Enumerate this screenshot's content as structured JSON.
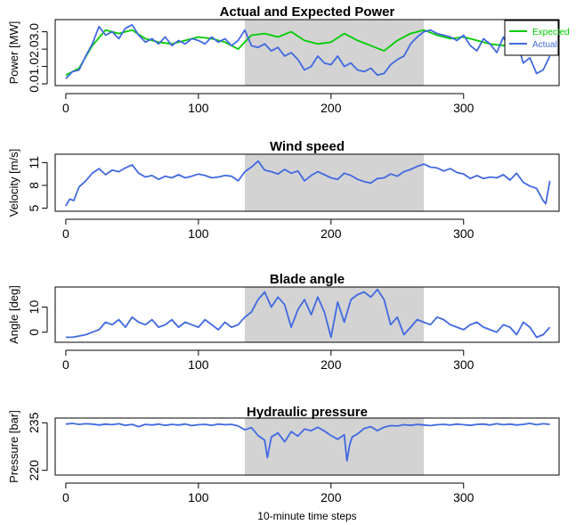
{
  "figure": {
    "xlabel": "10-minute time steps"
  },
  "chart_data": [
    {
      "type": "line",
      "title": "Actual and Expected Power",
      "xlabel": "",
      "ylabel": "Power [MW]",
      "xlim": [
        -8,
        372
      ],
      "ylim": [
        -0.1,
        3.7
      ],
      "xticks": [
        0,
        100,
        200,
        300
      ],
      "yticks": [
        0.0,
        1.0,
        2.0,
        3.0
      ],
      "ytick_labels": [
        "0.0",
        "1.0",
        "2.0",
        "3.0"
      ],
      "shaded_region": [
        135,
        270
      ],
      "shade_color": "#d3d3d3",
      "legend": {
        "position": "top-right",
        "entries": [
          "Expected",
          "Actual"
        ]
      },
      "series": [
        {
          "name": "Expected",
          "color": "#00cc00",
          "x": [
            0,
            10,
            20,
            30,
            40,
            50,
            60,
            70,
            80,
            90,
            100,
            110,
            120,
            130,
            140,
            150,
            160,
            170,
            180,
            190,
            200,
            210,
            220,
            230,
            240,
            250,
            260,
            270,
            280,
            290,
            300,
            310,
            320,
            330,
            340,
            350,
            360,
            365
          ],
          "y": [
            0.5,
            0.9,
            2.2,
            3.1,
            2.9,
            3.1,
            2.6,
            2.4,
            2.3,
            2.5,
            2.7,
            2.6,
            2.4,
            2.0,
            2.8,
            2.9,
            2.7,
            3.0,
            2.5,
            2.3,
            2.4,
            2.9,
            2.5,
            2.2,
            1.9,
            2.5,
            2.9,
            3.1,
            2.8,
            2.6,
            2.7,
            2.5,
            2.3,
            2.2,
            2.7,
            2.1,
            1.8,
            2.3
          ]
        },
        {
          "name": "Actual",
          "color": "#4169e1",
          "x": [
            0,
            5,
            10,
            15,
            20,
            25,
            30,
            35,
            40,
            45,
            50,
            55,
            60,
            65,
            70,
            75,
            80,
            85,
            90,
            95,
            100,
            105,
            110,
            115,
            120,
            125,
            130,
            135,
            140,
            145,
            150,
            155,
            160,
            165,
            170,
            175,
            180,
            185,
            190,
            195,
            200,
            205,
            210,
            215,
            220,
            225,
            230,
            235,
            240,
            245,
            250,
            255,
            260,
            265,
            270,
            275,
            280,
            285,
            290,
            295,
            300,
            305,
            310,
            315,
            320,
            325,
            330,
            335,
            340,
            345,
            350,
            355,
            360,
            365
          ],
          "y": [
            0.3,
            0.7,
            0.8,
            1.6,
            2.3,
            3.3,
            2.8,
            3.0,
            2.6,
            3.2,
            3.4,
            2.8,
            2.4,
            2.6,
            2.3,
            2.7,
            2.2,
            2.5,
            2.3,
            2.6,
            2.5,
            2.3,
            2.7,
            2.4,
            2.6,
            2.2,
            2.5,
            3.1,
            2.2,
            2.1,
            2.3,
            1.9,
            2.1,
            1.6,
            1.8,
            1.4,
            0.8,
            1.0,
            1.6,
            1.2,
            1.1,
            1.6,
            1.0,
            1.2,
            0.8,
            0.7,
            0.9,
            0.5,
            0.6,
            1.1,
            1.4,
            1.6,
            2.3,
            2.7,
            3.0,
            3.1,
            2.9,
            2.8,
            2.7,
            2.5,
            2.8,
            2.2,
            1.9,
            2.6,
            2.3,
            1.8,
            2.7,
            1.9,
            2.5,
            1.2,
            1.5,
            0.6,
            0.8,
            1.6
          ]
        }
      ]
    },
    {
      "type": "line",
      "title": "Wind speed",
      "xlabel": "",
      "ylabel": "Velocity [m/s]",
      "xlim": [
        -8,
        372
      ],
      "ylim": [
        4.6,
        12.1
      ],
      "xticks": [
        0,
        100,
        200,
        300
      ],
      "yticks": [
        5,
        8,
        11
      ],
      "ytick_labels": [
        "5",
        "8",
        "11"
      ],
      "shaded_region": [
        135,
        270
      ],
      "shade_color": "#d3d3d3",
      "series": [
        {
          "color": "#4169e1",
          "x": [
            0,
            3,
            6,
            10,
            15,
            20,
            25,
            30,
            35,
            40,
            45,
            50,
            55,
            60,
            65,
            70,
            75,
            80,
            85,
            90,
            95,
            100,
            105,
            110,
            115,
            120,
            125,
            130,
            135,
            140,
            145,
            150,
            155,
            160,
            165,
            170,
            175,
            180,
            185,
            190,
            195,
            200,
            205,
            210,
            215,
            220,
            225,
            230,
            235,
            240,
            245,
            250,
            255,
            260,
            265,
            270,
            275,
            280,
            285,
            290,
            295,
            300,
            305,
            310,
            315,
            320,
            325,
            330,
            335,
            340,
            345,
            350,
            355,
            360,
            362,
            365
          ],
          "y": [
            5.3,
            6.2,
            6.0,
            7.8,
            8.6,
            9.6,
            10.2,
            9.4,
            10.0,
            9.8,
            10.3,
            10.7,
            9.6,
            9.1,
            9.3,
            8.8,
            9.2,
            9.0,
            9.4,
            9.0,
            9.2,
            9.5,
            9.3,
            9.0,
            9.1,
            9.3,
            9.2,
            8.6,
            9.8,
            10.4,
            11.2,
            10.0,
            9.8,
            9.5,
            10.1,
            9.6,
            9.9,
            8.6,
            9.3,
            9.8,
            9.4,
            9.0,
            8.8,
            9.6,
            9.3,
            8.8,
            8.5,
            8.3,
            8.9,
            9.0,
            9.5,
            9.2,
            9.8,
            10.1,
            10.5,
            10.8,
            10.4,
            10.3,
            9.9,
            10.2,
            9.7,
            9.5,
            8.9,
            9.3,
            8.9,
            9.1,
            9.0,
            9.4,
            8.7,
            9.6,
            8.4,
            7.9,
            7.6,
            6.0,
            5.6,
            8.6
          ]
        }
      ]
    },
    {
      "type": "line",
      "title": "Blade angle",
      "xlabel": "",
      "ylabel": "Angle [deg]",
      "xlim": [
        -8,
        372
      ],
      "ylim": [
        -4,
        18
      ],
      "xticks": [
        0,
        100,
        200,
        300
      ],
      "yticks": [
        0,
        10
      ],
      "ytick_labels": [
        "0",
        "10"
      ],
      "shaded_region": [
        135,
        270
      ],
      "shade_color": "#d3d3d3",
      "series": [
        {
          "color": "#4169e1",
          "x": [
            0,
            5,
            10,
            15,
            20,
            25,
            30,
            35,
            40,
            45,
            50,
            55,
            60,
            65,
            70,
            75,
            80,
            85,
            90,
            95,
            100,
            105,
            110,
            115,
            120,
            125,
            130,
            135,
            140,
            145,
            150,
            155,
            160,
            165,
            170,
            175,
            180,
            185,
            190,
            195,
            200,
            205,
            210,
            215,
            220,
            225,
            230,
            235,
            240,
            245,
            250,
            255,
            260,
            265,
            270,
            275,
            280,
            285,
            290,
            295,
            300,
            305,
            310,
            315,
            320,
            325,
            330,
            335,
            340,
            345,
            350,
            355,
            360,
            365
          ],
          "y": [
            -2,
            -2,
            -1.5,
            -1,
            0,
            1,
            4,
            3,
            5,
            2,
            6,
            4,
            3,
            5,
            2,
            3,
            5,
            2,
            4,
            3,
            2,
            5,
            3,
            1,
            4,
            2,
            3,
            6,
            8,
            13,
            16,
            10,
            14,
            11,
            2,
            9,
            13,
            7,
            14,
            8,
            -2,
            12,
            4,
            13,
            15,
            16,
            14,
            17,
            13,
            3,
            6,
            -1,
            2,
            5,
            4,
            3,
            6,
            5,
            3,
            2,
            1,
            3,
            4,
            2,
            1,
            0,
            3,
            2,
            -1,
            4,
            2,
            -2,
            -1,
            2
          ]
        }
      ]
    },
    {
      "type": "line",
      "title": "Hydraulic pressure",
      "xlabel": "",
      "ylabel": "Pressure [bar]",
      "xlim": [
        -8,
        372
      ],
      "ylim": [
        218.5,
        236.5
      ],
      "xticks": [
        0,
        100,
        200,
        300
      ],
      "yticks": [
        220,
        235
      ],
      "ytick_labels": [
        "220",
        "235"
      ],
      "shaded_region": [
        135,
        270
      ],
      "shade_color": "#d3d3d3",
      "series": [
        {
          "color": "#4169e1",
          "x": [
            0,
            5,
            10,
            15,
            20,
            25,
            30,
            35,
            40,
            45,
            50,
            55,
            60,
            65,
            70,
            75,
            80,
            85,
            90,
            95,
            100,
            105,
            110,
            115,
            120,
            125,
            130,
            135,
            140,
            145,
            150,
            152,
            155,
            160,
            165,
            170,
            175,
            180,
            185,
            190,
            195,
            200,
            205,
            210,
            212,
            214,
            216,
            220,
            225,
            230,
            235,
            240,
            245,
            250,
            255,
            260,
            265,
            270,
            275,
            280,
            285,
            290,
            295,
            300,
            305,
            310,
            315,
            320,
            325,
            330,
            335,
            340,
            345,
            350,
            355,
            360,
            365
          ],
          "y": [
            234.6,
            234.8,
            234.5,
            234.7,
            234.6,
            234.3,
            234.6,
            234.4,
            234.7,
            234.2,
            234.5,
            233.8,
            234.5,
            234.3,
            234.6,
            234.2,
            234.5,
            234.3,
            234.6,
            234.1,
            234.4,
            234.5,
            234.2,
            234.6,
            234.4,
            234.5,
            234.0,
            232.8,
            233.5,
            231.0,
            229.5,
            224.0,
            230.5,
            231.8,
            229.0,
            232.2,
            230.8,
            233.0,
            232.5,
            233.6,
            232.4,
            231.0,
            229.8,
            231.2,
            223.0,
            228.0,
            230.5,
            231.5,
            233.2,
            233.8,
            232.5,
            233.6,
            234.1,
            234.0,
            234.4,
            234.2,
            234.5,
            234.3,
            234.1,
            234.4,
            234.5,
            234.3,
            234.6,
            234.4,
            234.2,
            234.5,
            234.6,
            234.3,
            234.7,
            234.4,
            234.6,
            234.3,
            234.5,
            234.8,
            234.4,
            234.7,
            234.5
          ]
        }
      ]
    }
  ]
}
